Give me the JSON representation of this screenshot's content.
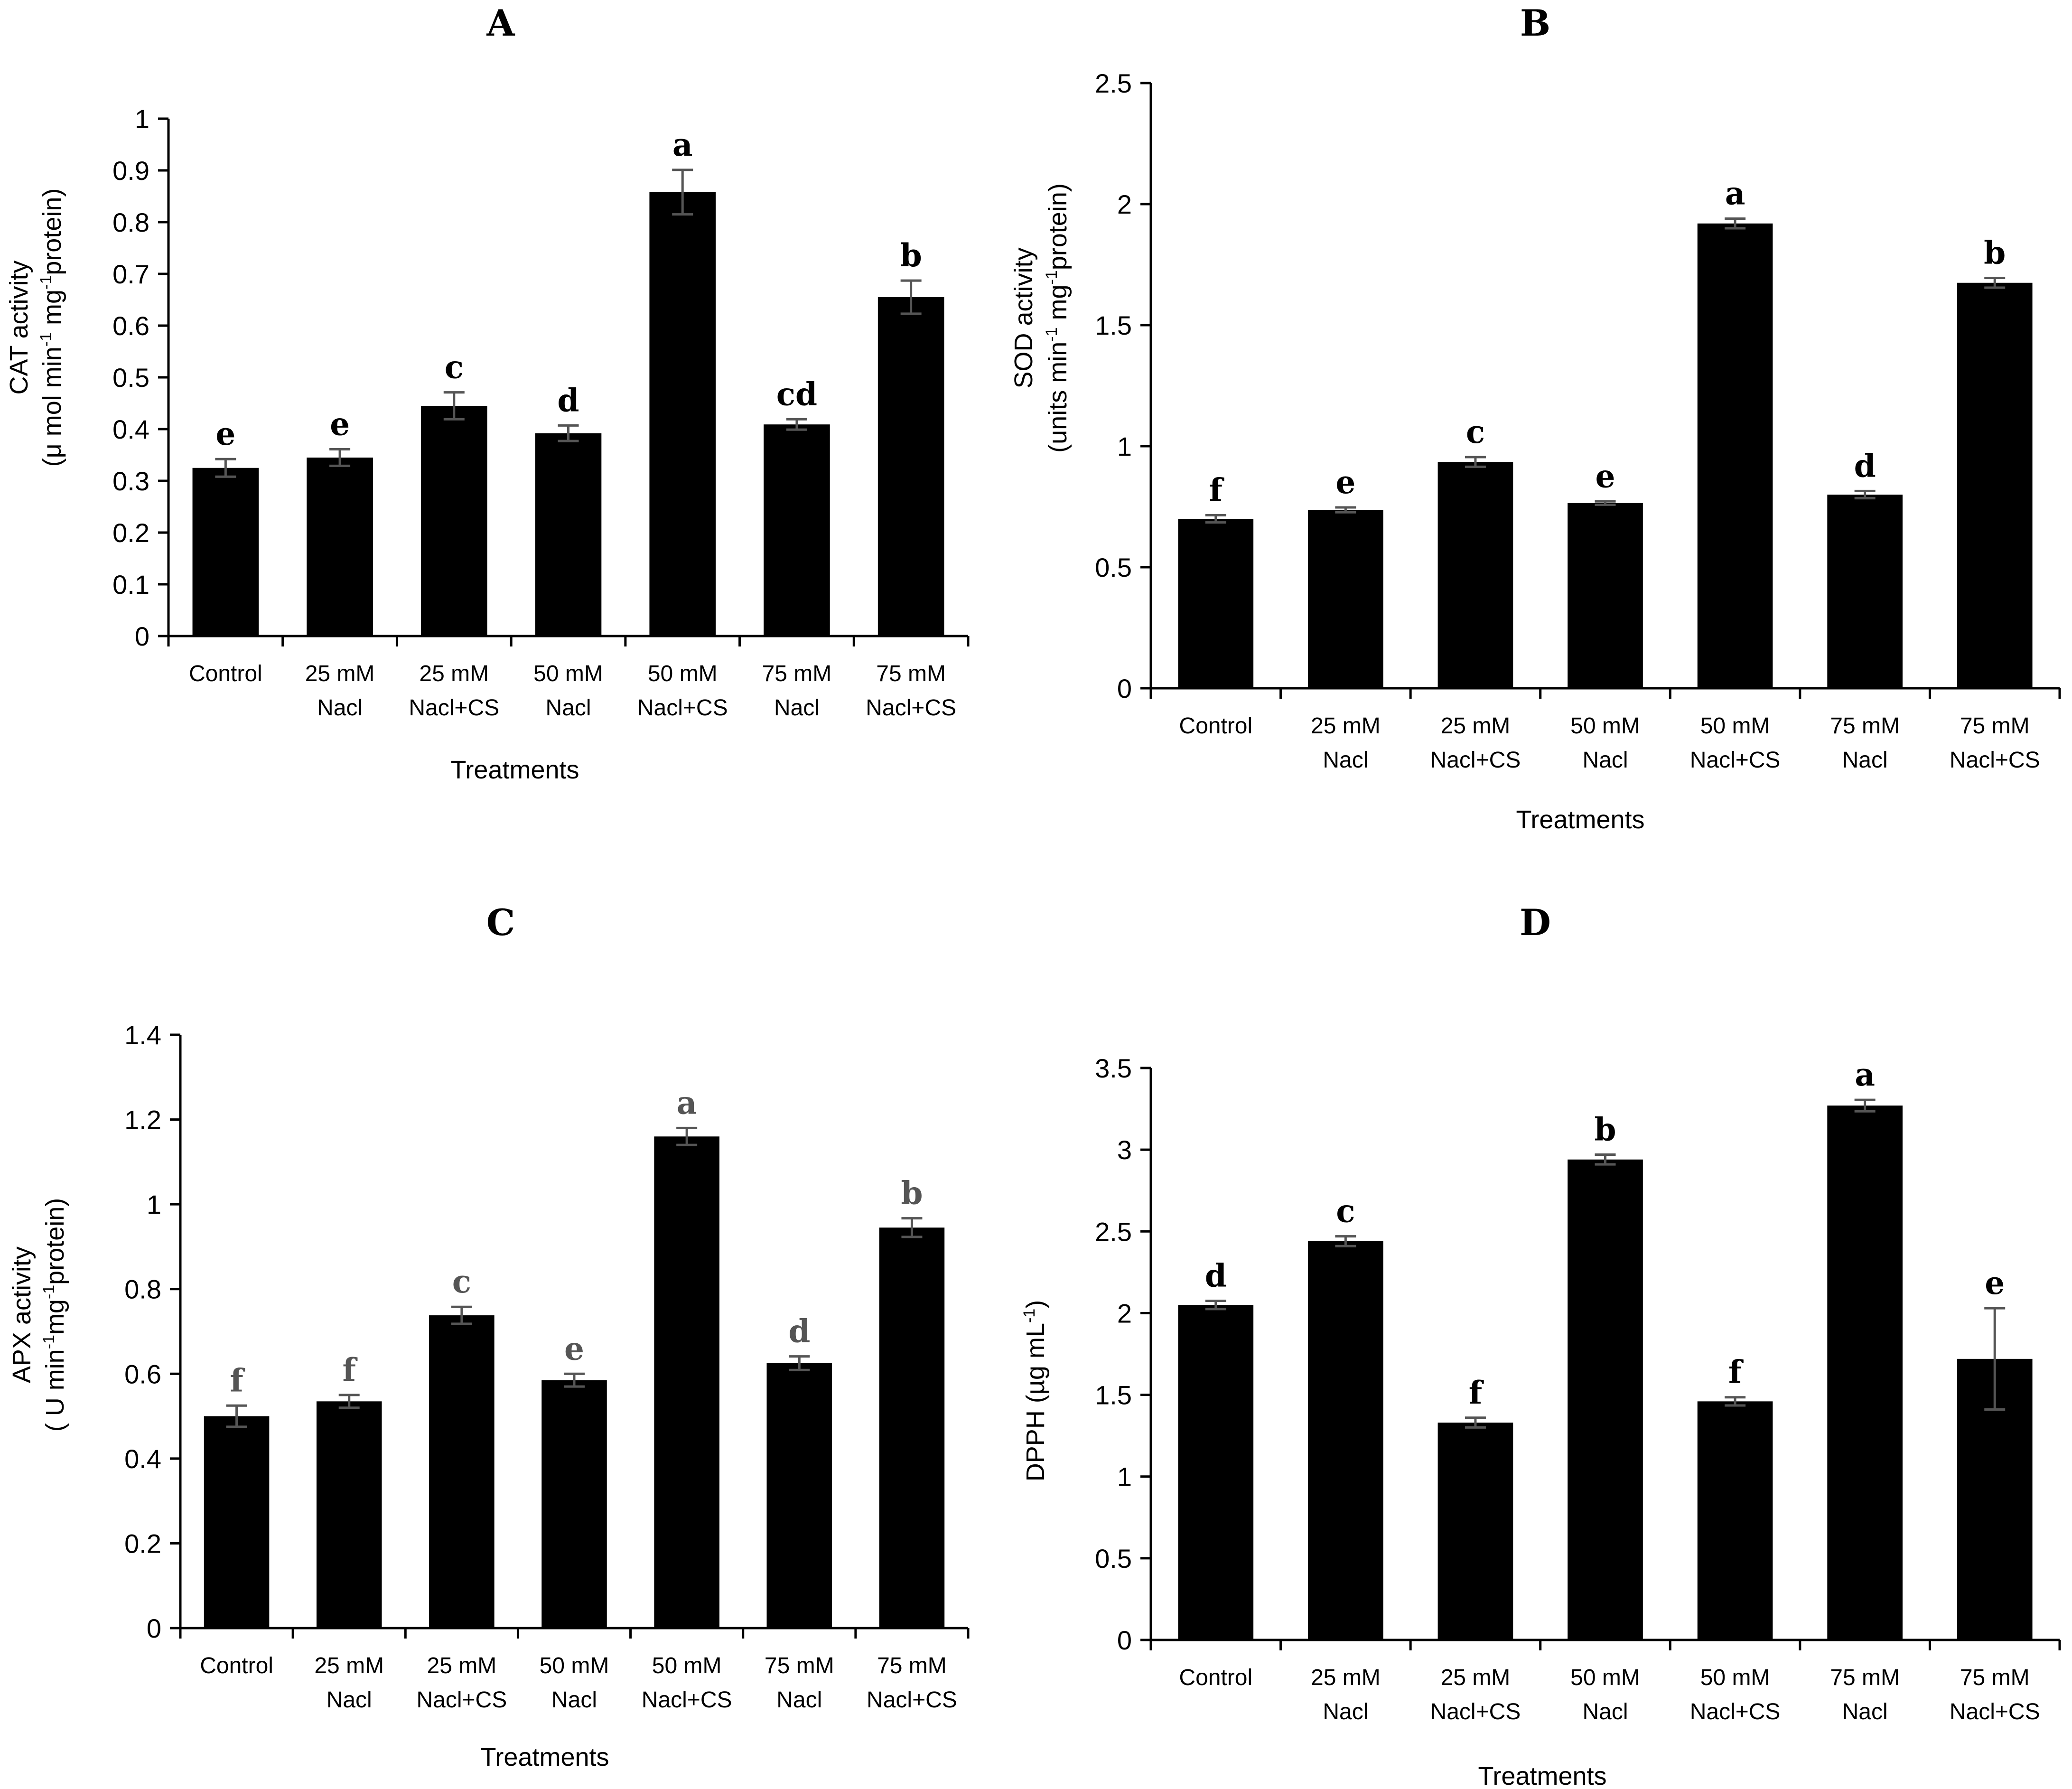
{
  "x_axis_title": "Treatments",
  "categories": [
    [
      "Control"
    ],
    [
      "25 mM",
      "Nacl"
    ],
    [
      "25 mM",
      "Nacl+CS"
    ],
    [
      "50 mM",
      "Nacl"
    ],
    [
      "50 mM",
      "Nacl+CS"
    ],
    [
      "75 mM",
      "Nacl"
    ],
    [
      "75 mM",
      "Nacl+CS"
    ]
  ],
  "colors": {
    "bar": "#000000",
    "axis": "#000000",
    "error": "#555555",
    "letters": "#000000",
    "letters_muted": "#555555"
  },
  "chart_data": [
    {
      "type": "bar",
      "panel": "A",
      "title": "A",
      "xlabel": "Treatments",
      "ylabel": [
        "CAT activity",
        "(μ mol min-1 mg-1 protein)"
      ],
      "categories": [
        "Control",
        "25 mM Nacl",
        "25 mM Nacl+CS",
        "50 mM Nacl",
        "50 mM Nacl+CS",
        "75 mM Nacl",
        "75 mM Nacl+CS"
      ],
      "values": [
        0.325,
        0.345,
        0.445,
        0.392,
        0.858,
        0.409,
        0.655
      ],
      "errors": [
        0.017,
        0.016,
        0.026,
        0.015,
        0.043,
        0.01,
        0.032
      ],
      "letters": [
        "e",
        "e",
        "c",
        "d",
        "a",
        "cd",
        "b"
      ],
      "ylim": [
        0,
        1
      ],
      "yticks": [
        0,
        0.1,
        0.2,
        0.3,
        0.4,
        0.5,
        0.6,
        0.7,
        0.8,
        0.9,
        1
      ],
      "ytick_labels": [
        "0",
        "0.1",
        "0.2",
        "0.3",
        "0.4",
        "0.5",
        "0.6",
        "0.7",
        "0.8",
        "0.9",
        "1"
      ],
      "letter_color": "black"
    },
    {
      "type": "bar",
      "panel": "B",
      "title": "B",
      "xlabel": "Treatments",
      "ylabel": [
        "SOD activity",
        "(units min-1 mg-1 protein)"
      ],
      "categories": [
        "Control",
        "25 mM Nacl",
        "25 mM Nacl+CS",
        "50 mM Nacl",
        "50 mM Nacl+CS",
        "75 mM Nacl",
        "75 mM Nacl+CS"
      ],
      "values": [
        0.7,
        0.737,
        0.935,
        0.765,
        1.92,
        0.8,
        1.675
      ],
      "errors": [
        0.015,
        0.01,
        0.02,
        0.007,
        0.02,
        0.015,
        0.02
      ],
      "letters": [
        "f",
        "e",
        "c",
        "e",
        "a",
        "d",
        "b"
      ],
      "ylim": [
        0,
        2.5
      ],
      "yticks": [
        0,
        0.5,
        1,
        1.5,
        2,
        2.5
      ],
      "ytick_labels": [
        "0",
        "0.5",
        "1",
        "1.5",
        "2",
        "2.5"
      ],
      "letter_color": "black"
    },
    {
      "type": "bar",
      "panel": "C",
      "title": "C",
      "xlabel": "Treatments",
      "ylabel": [
        "APX activity",
        "( U min-1 mg-1 protein)"
      ],
      "categories": [
        "Control",
        "25 mM Nacl",
        "25 mM Nacl+CS",
        "50 mM Nacl",
        "50 mM Nacl+CS",
        "75 mM Nacl",
        "75 mM Nacl+CS"
      ],
      "values": [
        0.5,
        0.535,
        0.738,
        0.585,
        1.16,
        0.625,
        0.945
      ],
      "errors": [
        0.025,
        0.015,
        0.02,
        0.015,
        0.02,
        0.016,
        0.022
      ],
      "letters": [
        "f",
        "f",
        "c",
        "e",
        "a",
        "d",
        "b"
      ],
      "ylim": [
        0,
        1.4
      ],
      "yticks": [
        0,
        0.2,
        0.4,
        0.6,
        0.8,
        1,
        1.2,
        1.4
      ],
      "ytick_labels": [
        "0",
        "0.2",
        "0.4",
        "0.6",
        "0.8",
        "1",
        "1.2",
        "1.4"
      ],
      "letter_color": "muted"
    },
    {
      "type": "bar",
      "panel": "D",
      "title": "D",
      "xlabel": "Treatments",
      "ylabel": [
        "DPPH (µg mL-1)"
      ],
      "categories": [
        "Control",
        "25 mM Nacl",
        "25 mM Nacl+CS",
        "50 mM Nacl",
        "50 mM Nacl+CS",
        "75 mM Nacl",
        "75 mM Nacl+CS"
      ],
      "values": [
        2.05,
        2.44,
        1.33,
        2.94,
        1.46,
        3.27,
        1.72
      ],
      "errors": [
        0.025,
        0.03,
        0.03,
        0.03,
        0.025,
        0.035,
        0.31
      ],
      "letters": [
        "d",
        "c",
        "f",
        "b",
        "f",
        "a",
        "e"
      ],
      "ylim": [
        0,
        3.5
      ],
      "yticks": [
        0,
        0.5,
        1,
        1.5,
        2,
        2.5,
        3,
        3.5
      ],
      "ytick_labels": [
        "0",
        "0.5",
        "1",
        "1.5",
        "2",
        "2.5",
        "3",
        "3.5"
      ],
      "letter_color": "black"
    }
  ]
}
